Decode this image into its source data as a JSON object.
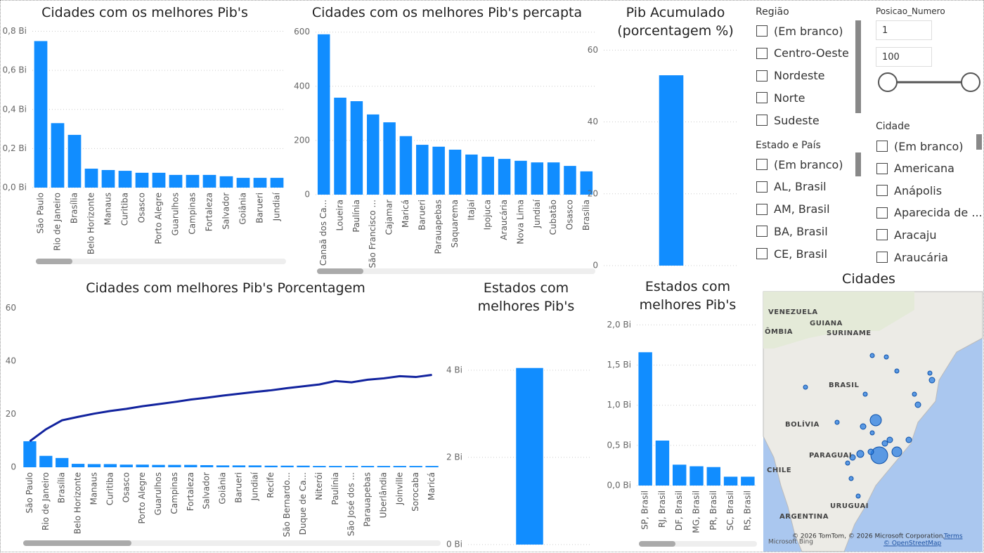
{
  "chart_data": [
    {
      "type": "bar",
      "title": "Cidades com os melhores Pib's",
      "color": "#118DFF",
      "grid": true,
      "categories": [
        "São Paulo",
        "Rio de Janeiro",
        "Brasília",
        "Belo Horizonte",
        "Manaus",
        "Curitiba",
        "Osasco",
        "Porto Alegre",
        "Guarulhos",
        "Campinas",
        "Fortaleza",
        "Salvador",
        "Goiânia",
        "Barueri",
        "Jundiaí"
      ],
      "values": [
        0.75,
        0.33,
        0.27,
        0.097,
        0.09,
        0.086,
        0.076,
        0.076,
        0.065,
        0.065,
        0.065,
        0.058,
        0.05,
        0.05,
        0.05
      ],
      "ylim": [
        0,
        0.82
      ],
      "yticks": [
        {
          "value": 0,
          "label": "0,0 Bi"
        },
        {
          "value": 0.2,
          "label": "0,2 Bi"
        },
        {
          "value": 0.4,
          "label": "0,4 Bi"
        },
        {
          "value": 0.6,
          "label": "0,6 Bi"
        },
        {
          "value": 0.8,
          "label": "0,8 Bi"
        }
      ]
    },
    {
      "type": "bar",
      "title": "Cidades com os melhores Pib's percapta",
      "color": "#118DFF",
      "grid": true,
      "categories": [
        "Canaã dos Ca...",
        "Loueira",
        "Paulínia",
        "São Francisco ...",
        "Cajamar",
        "Maricá",
        "Barueri",
        "Parauapebas",
        "Saquarema",
        "Itajaí",
        "Ipojuca",
        "Araucária",
        "Nova Lima",
        "Jundiaí",
        "Cubatão",
        "Osasco",
        "Brasília"
      ],
      "values": [
        592,
        358,
        345,
        296,
        267,
        216,
        184,
        177,
        166,
        148,
        140,
        132,
        125,
        119,
        119,
        106,
        86
      ],
      "ylim": [
        0,
        620
      ],
      "yticks": [
        0,
        200,
        400,
        600
      ]
    },
    {
      "type": "bar",
      "title": "Pib Acumulado (porcentagem %)",
      "color": "#118DFF",
      "grid": true,
      "categories": [
        null
      ],
      "values": [
        53
      ],
      "ylim": [
        0,
        63
      ],
      "yticks": [
        0,
        20,
        40,
        60
      ]
    },
    {
      "type": "combo",
      "title": "Cidades com melhores Pib's Porcentagem",
      "grid": false,
      "categories": [
        "São Paulo",
        "Rio de Janeiro",
        "Brasília",
        "Belo Horizonte",
        "Manaus",
        "Curitiba",
        "Osasco",
        "Porto Alegre",
        "Guarulhos",
        "Campinas",
        "Fortaleza",
        "Salvador",
        "Goiânia",
        "Barueri",
        "Jundiaí",
        "Recife",
        "São Bernardo...",
        "Duque de Ca...",
        "Niterói",
        "Paulínia",
        "São José dos ...",
        "Parauapebas",
        "Uberlândia",
        "Joinville",
        "Sorocaba",
        "Maricá"
      ],
      "series": [
        {
          "type": "bar",
          "color": "#118DFF",
          "values": [
            9.8,
            4.3,
            3.5,
            1.3,
            1.2,
            1.2,
            1.0,
            1.0,
            0.9,
            0.9,
            0.9,
            0.8,
            0.7,
            0.7,
            0.7,
            0.6,
            0.6,
            0.6,
            0.5,
            0.5,
            0.5,
            0.5,
            0.5,
            0.5,
            0.5,
            0.5
          ]
        },
        {
          "type": "line",
          "color": "#12239E",
          "values": [
            9.8,
            14.3,
            17.7,
            19,
            20.2,
            21.2,
            22,
            23,
            23.8,
            24.6,
            25.5,
            26.2,
            27,
            27.7,
            28.4,
            29,
            29.8,
            30.5,
            31.2,
            32.5,
            32,
            33,
            33.5,
            34.3,
            34,
            34.8
          ]
        }
      ],
      "ylim": [
        0,
        63
      ],
      "yticks": [
        0,
        20,
        40,
        60
      ]
    },
    {
      "type": "bar",
      "title": "Estados com melhores Pib's",
      "color": "#118DFF",
      "grid": true,
      "categories": [
        null
      ],
      "values": [
        4.05
      ],
      "ylim": [
        0,
        4.4
      ],
      "yticks": [
        {
          "value": 0,
          "label": "0 Bi"
        },
        {
          "value": 2,
          "label": "2 Bi"
        },
        {
          "value": 4,
          "label": "4 Bi"
        }
      ]
    },
    {
      "type": "bar",
      "title": "Estados com melhores Pib's",
      "color": "#118DFF",
      "grid": true,
      "categories": [
        "SP, Brasil",
        "RJ, Brasil",
        "DF, Brasil",
        "MG, Brasil",
        "PR, Brasil",
        "SC, Brasil",
        "RS, Brasil"
      ],
      "values": [
        1.66,
        0.56,
        0.26,
        0.24,
        0.23,
        0.11,
        0.11
      ],
      "ylim": [
        0,
        2.1
      ],
      "yticks": [
        {
          "value": 0,
          "label": "0,0 Bi"
        },
        {
          "value": 0.5,
          "label": "0,5 Bi"
        },
        {
          "value": 1,
          "label": "1,0 Bi"
        },
        {
          "value": 1.5,
          "label": "1,5 Bi"
        },
        {
          "value": 2,
          "label": "2,0 Bi"
        }
      ]
    }
  ],
  "slicers": [
    {
      "title": "Região",
      "items": [
        "(Em branco)",
        "Centro-Oeste",
        "Nordeste",
        "Norte",
        "Sudeste"
      ]
    },
    {
      "title": "Estado e País",
      "items": [
        "(Em branco)",
        "AL, Brasil",
        "AM, Brasil",
        "BA, Brasil",
        "CE, Brasil"
      ]
    },
    {
      "title": "Cidade",
      "items": [
        "(Em branco)",
        "Americana",
        "Anápolis",
        "Aparecida de ...",
        "Aracaju",
        "Araucária"
      ]
    }
  ],
  "range_slicer": {
    "title": "Posicao_Numero",
    "min": "1",
    "max": "100"
  },
  "map": {
    "title": "Cidades",
    "labels": [
      "VENEZUELA",
      "GUIANA",
      "SURINAME",
      "ÔMBIA",
      "BRASIL",
      "BOLÍVIA",
      "PARAGUAI",
      "CHILE",
      "URUGUAI",
      "ARGENTINA"
    ],
    "attribution": "© 2026 TomTom, © 2026 Microsoft Corporation,",
    "terms": "Terms",
    "osm": "© OpenStreetMap",
    "bing": "Microsoft Bing"
  }
}
